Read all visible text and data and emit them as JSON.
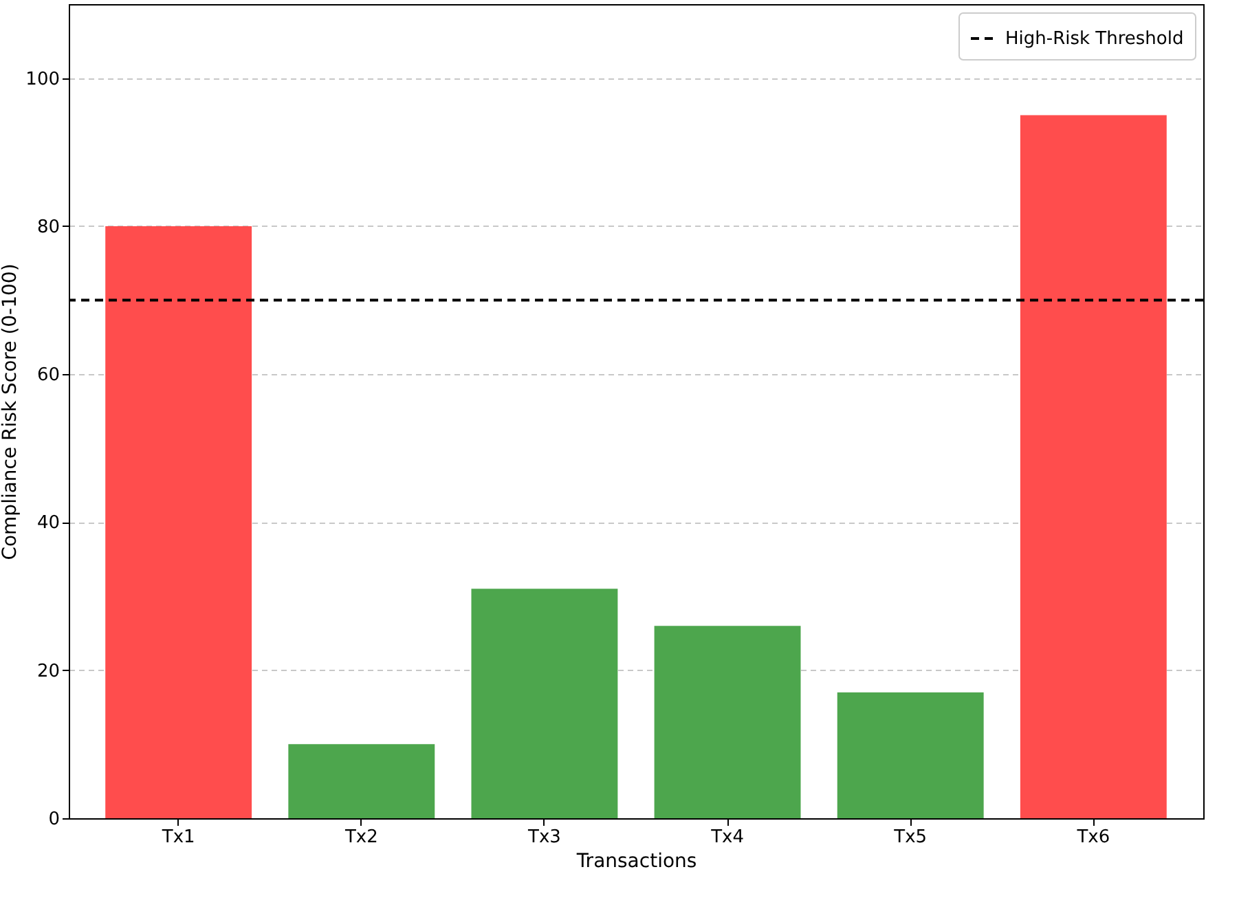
{
  "chart_data": {
    "type": "bar",
    "xlabel": "Transactions",
    "ylabel": "Compliance Risk Score (0-100)",
    "categories": [
      "Tx1",
      "Tx2",
      "Tx3",
      "Tx4",
      "Tx5",
      "Tx6"
    ],
    "values": [
      80,
      10,
      31,
      26,
      17,
      95
    ],
    "colors": [
      "#ff4d4d",
      "#4da64d",
      "#4da64d",
      "#4da64d",
      "#4da64d",
      "#ff4d4d"
    ],
    "ylim": [
      0,
      110
    ],
    "yticks": [
      0,
      20,
      40,
      60,
      80,
      100
    ],
    "grid": "y",
    "legend": "top right",
    "ref_lines": [
      {
        "axis": "y",
        "value": 70,
        "label": "High-Risk Threshold",
        "color": "#000000",
        "line_style": "dashed"
      }
    ]
  }
}
